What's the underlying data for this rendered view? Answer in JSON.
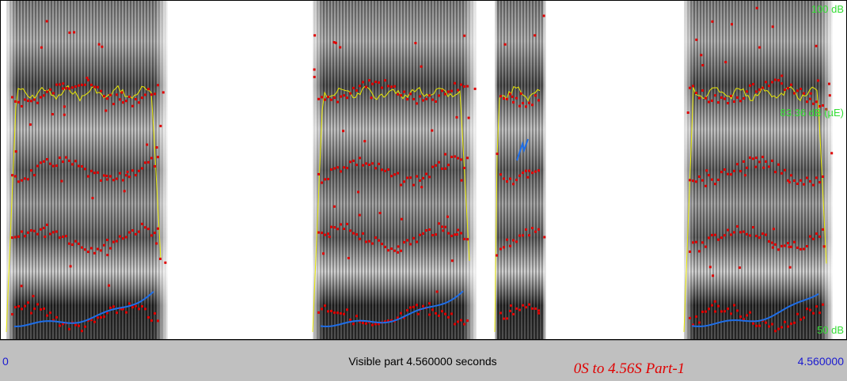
{
  "spectrogram": {
    "intensity_max": "100 dB",
    "intensity_mean": "83.36 dB (µE)",
    "intensity_min": "50 dB"
  },
  "status_bar": {
    "start": "0",
    "visible_part": "Visible part 4.560000 seconds",
    "selection": "0S to 4.56S Part-1",
    "end": "4.560000"
  }
}
